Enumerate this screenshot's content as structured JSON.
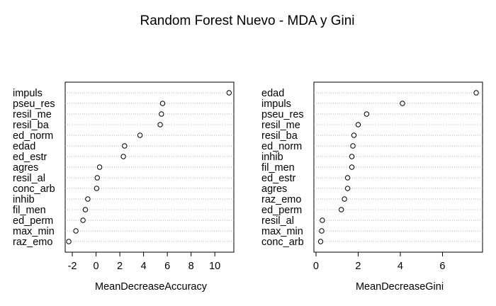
{
  "title": "Random Forest Nuevo - MDA y Gini",
  "chart_data": [
    {
      "type": "scatter",
      "subtype": "dotchart",
      "xlabel": "MeanDecreaseAccuracy",
      "ylabel": "",
      "xlim": [
        -2.6,
        11.6
      ],
      "xticks": [
        -2,
        0,
        2,
        4,
        6,
        8,
        10
      ],
      "grid": true,
      "categories": [
        "impuls",
        "pseu_res",
        "resil_me",
        "resil_ba",
        "ed_norm",
        "edad",
        "ed_estr",
        "agres",
        "resil_al",
        "conc_arb",
        "inhib",
        "fil_men",
        "ed_perm",
        "max_min",
        "raz_emo"
      ],
      "values": [
        11.2,
        5.6,
        5.5,
        5.4,
        3.7,
        2.4,
        2.3,
        0.3,
        0.1,
        0.05,
        -0.7,
        -0.9,
        -1.1,
        -1.7,
        -2.3
      ]
    },
    {
      "type": "scatter",
      "subtype": "dotchart",
      "xlabel": "MeanDecreaseGini",
      "ylabel": "",
      "xlim": [
        -0.1,
        7.9
      ],
      "xticks": [
        0,
        2,
        4,
        6
      ],
      "grid": true,
      "categories": [
        "edad",
        "impuls",
        "pseu_res",
        "resil_me",
        "resil_ba",
        "ed_norm",
        "inhib",
        "fil_men",
        "ed_estr",
        "agres",
        "raz_emo",
        "ed_perm",
        "resil_al",
        "max_min",
        "conc_arb"
      ],
      "values": [
        7.6,
        4.1,
        2.4,
        2.0,
        1.8,
        1.75,
        1.7,
        1.7,
        1.5,
        1.5,
        1.35,
        1.2,
        0.3,
        0.27,
        0.22
      ]
    }
  ]
}
